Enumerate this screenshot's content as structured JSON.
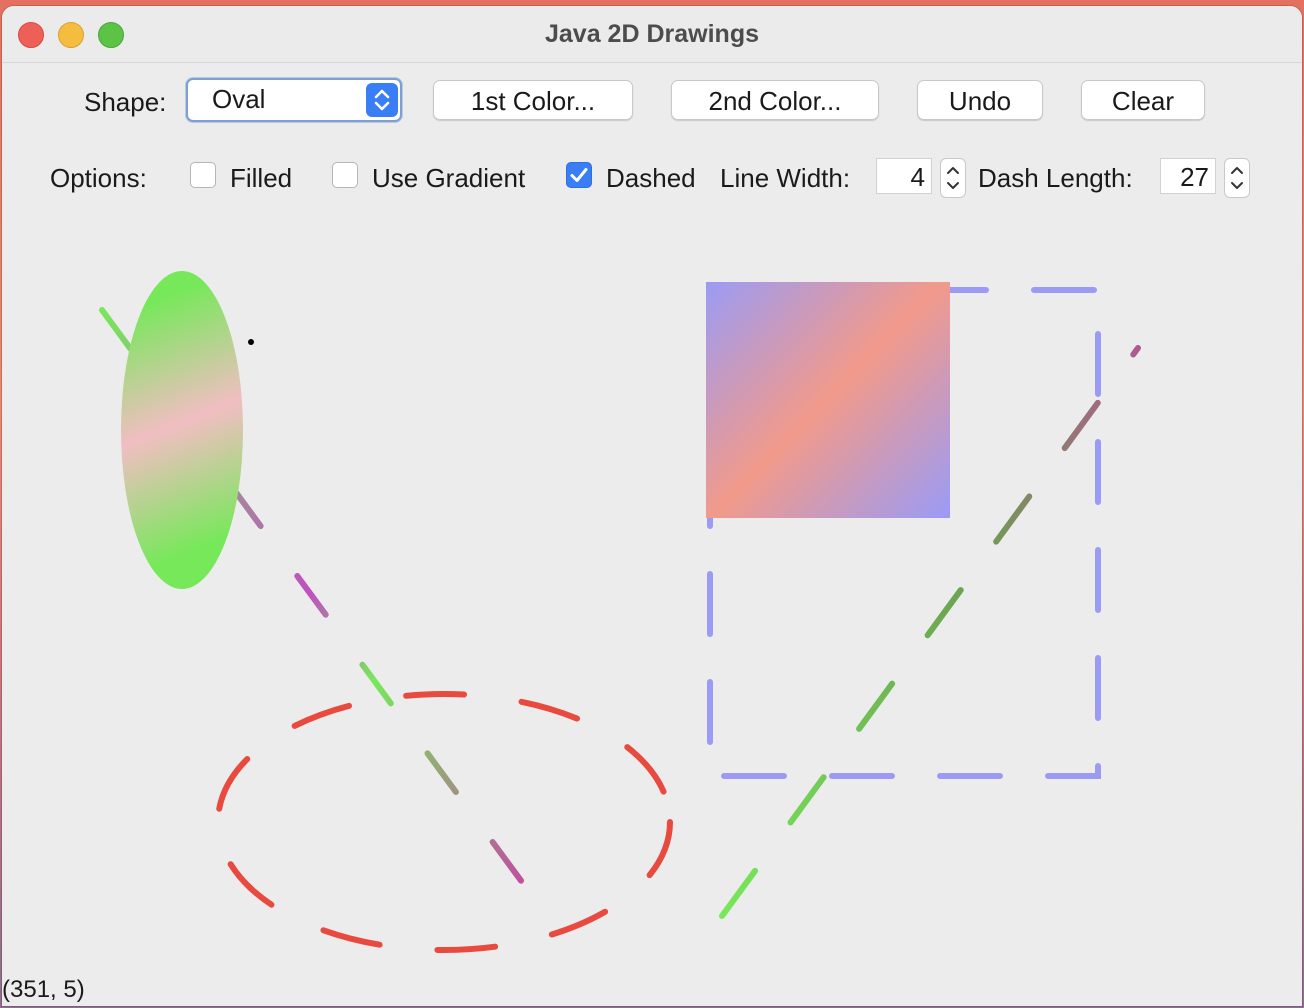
{
  "window": {
    "title": "Java 2D Drawings"
  },
  "toolbar": {
    "shape_label": "Shape:",
    "shape_value": "Oval",
    "first_color_label": "1st Color...",
    "second_color_label": "2nd Color...",
    "undo_label": "Undo",
    "clear_label": "Clear"
  },
  "options": {
    "label": "Options:",
    "filled": {
      "label": "Filled",
      "checked": false
    },
    "use_gradient": {
      "label": "Use Gradient",
      "checked": false
    },
    "dashed": {
      "label": "Dashed",
      "checked": true
    },
    "line_width_label": "Line Width:",
    "line_width_value": "4",
    "dash_length_label": "Dash Length:",
    "dash_length_value": "27"
  },
  "status": {
    "mouse_position": "(351, 5)"
  },
  "colors": {
    "accent": "#3a7ef5",
    "red_dash": "#e84a40",
    "blue_dash": "#9b9bf5",
    "green": "#77e85a",
    "salmon": "#f29a8a"
  }
}
